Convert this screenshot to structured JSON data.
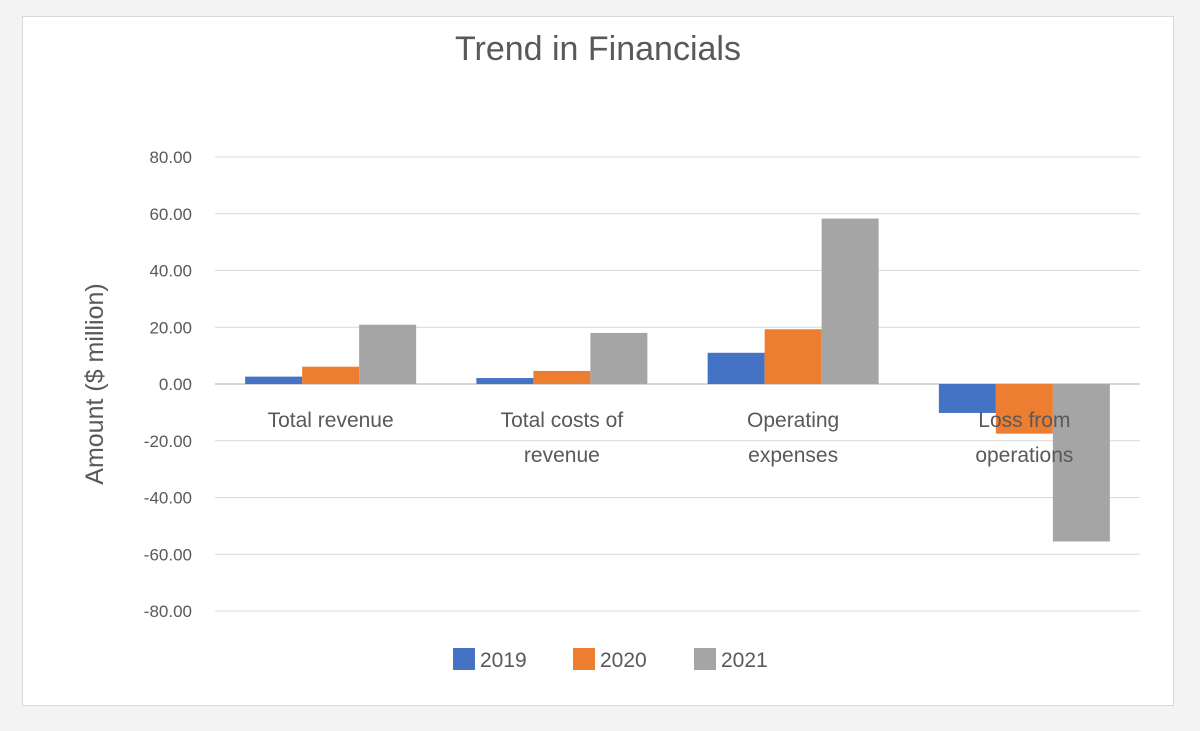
{
  "chart_data": {
    "type": "bar",
    "title": "Trend in Financials",
    "xlabel": "",
    "ylabel": "Amount ($ million)",
    "ylim": [
      -80,
      80
    ],
    "yticks": [
      "80.00",
      "60.00",
      "40.00",
      "20.00",
      "0.00",
      "-20.00",
      "-40.00",
      "-60.00",
      "-80.00"
    ],
    "tick_values": [
      80,
      60,
      40,
      20,
      0,
      -20,
      -40,
      -60,
      -80
    ],
    "grid": true,
    "legend_position": "bottom",
    "categories": [
      "Total revenue",
      "Total costs of revenue",
      "Operating expenses",
      "Loss from operations"
    ],
    "category_label_lines": [
      [
        "Total revenue"
      ],
      [
        "Total costs of",
        "revenue"
      ],
      [
        "Operating",
        "expenses"
      ],
      [
        "Loss from",
        "operations"
      ]
    ],
    "series": [
      {
        "name": "2019",
        "color": "#4472c4",
        "values": [
          2.6,
          2.1,
          11.0,
          -10.2
        ]
      },
      {
        "name": "2020",
        "color": "#ed7d31",
        "values": [
          6.1,
          4.6,
          19.3,
          -17.5
        ]
      },
      {
        "name": "2021",
        "color": "#a5a5a5",
        "values": [
          20.9,
          18.0,
          58.3,
          -55.5
        ]
      }
    ]
  }
}
